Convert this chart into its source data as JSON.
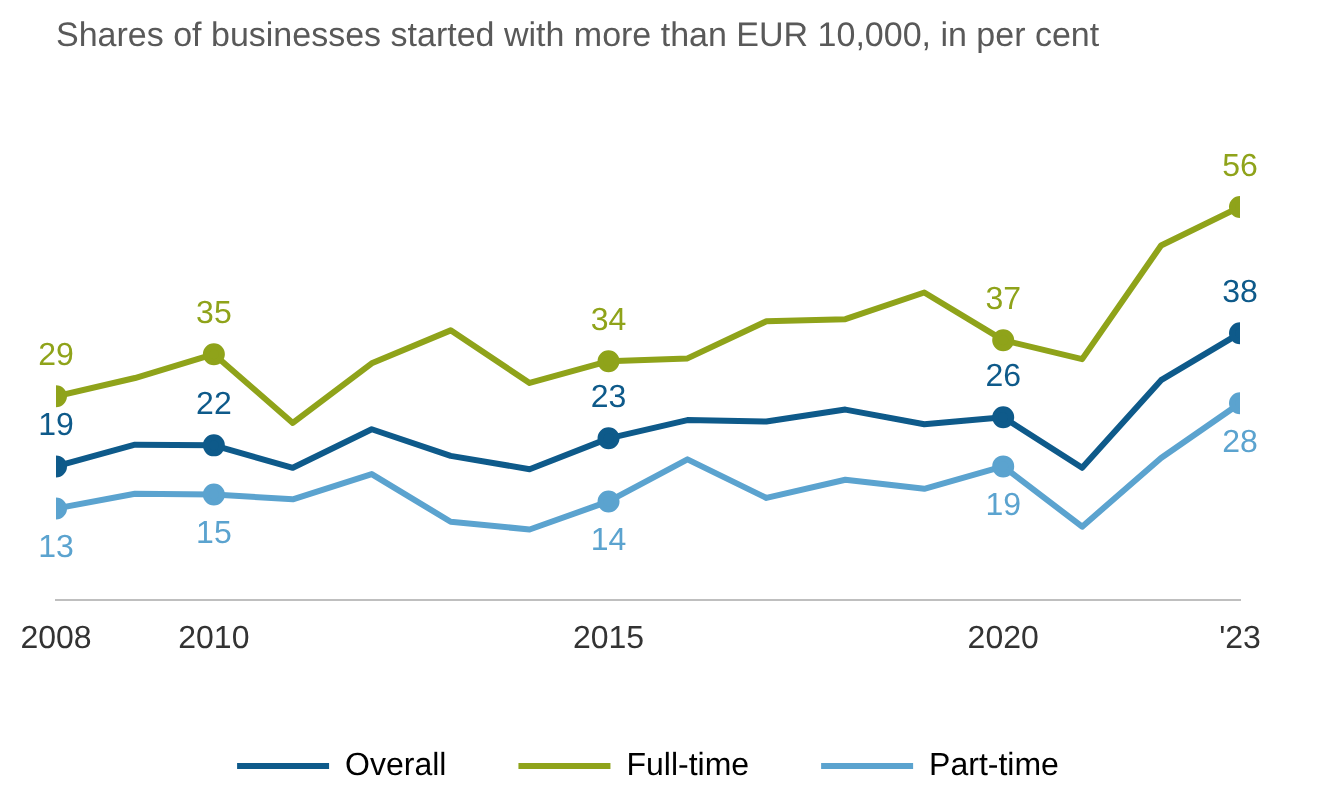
{
  "chart_data": {
    "type": "line",
    "title": "Shares of businesses started with more than EUR 10,000, in per cent",
    "x": [
      2008,
      2009,
      2010,
      2011,
      2012,
      2013,
      2014,
      2015,
      2016,
      2017,
      2018,
      2019,
      2020,
      2021,
      2022,
      2023
    ],
    "xlim": [
      2008,
      2023
    ],
    "xticks": [
      2008,
      2010,
      2015,
      2020,
      {
        "value": 2023,
        "label": "'23"
      }
    ],
    "tick_labels": "x",
    "grid": false,
    "legend": "bottom",
    "line_style": "solid",
    "series": [
      {
        "name": "Overall",
        "color": "#0e5a8a",
        "values": [
          19,
          22.1,
          22,
          18.8,
          24.3,
          20.5,
          18.6,
          23,
          25.6,
          25.4,
          27.1,
          25,
          26,
          18.8,
          31.3,
          38
        ],
        "value_labels": [
          "19",
          null,
          "22",
          null,
          null,
          null,
          null,
          "23",
          null,
          null,
          null,
          null,
          "26",
          null,
          null,
          "38"
        ]
      },
      {
        "name": "Full-time",
        "color": "#8fa31a",
        "values": [
          29,
          31.6,
          35,
          25.2,
          33.7,
          38.4,
          30.9,
          34,
          34.4,
          39.7,
          40,
          43.8,
          37,
          34.3,
          50.5,
          56
        ],
        "value_labels": [
          "29",
          null,
          "35",
          null,
          null,
          null,
          null,
          "34",
          null,
          null,
          null,
          null,
          "37",
          null,
          null,
          "56"
        ]
      },
      {
        "name": "Part-time",
        "color": "#5ba3cf",
        "values": [
          13,
          15.1,
          15,
          14.3,
          17.9,
          11.1,
          10,
          14,
          20,
          14.5,
          17.1,
          15.8,
          19,
          10.4,
          20.2,
          28
        ],
        "value_labels": [
          "13",
          null,
          "15",
          null,
          null,
          null,
          null,
          "14",
          null,
          null,
          null,
          null,
          "19",
          null,
          null,
          "28"
        ]
      }
    ]
  }
}
